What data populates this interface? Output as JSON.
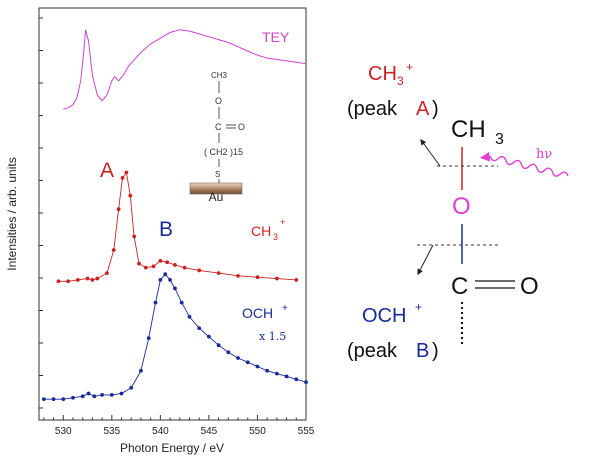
{
  "chart_data": {
    "type": "line",
    "xlabel": "Photon Energy  / eV",
    "ylabel": "Intensities / arb. units",
    "xlim": [
      527.5,
      555
    ],
    "x_ticks": [
      "530",
      "535",
      "540",
      "545",
      "550",
      "555"
    ],
    "y_tick_labels": "none",
    "grid": false,
    "series": [
      {
        "name": "TEY",
        "color": "#cc44cc",
        "marker": "none",
        "x": [
          530,
          530.5,
          531,
          531.4,
          531.8,
          532.1,
          532.3,
          532.6,
          533.0,
          533.5,
          534.0,
          534.5,
          535.0,
          535.3,
          535.7,
          536.2,
          536.7,
          537.2,
          538,
          539,
          540,
          541,
          542,
          543,
          544,
          545,
          546,
          547,
          548,
          549,
          550,
          551,
          552,
          553,
          554,
          555
        ],
        "y": [
          0.4,
          0.41,
          0.43,
          0.48,
          0.6,
          0.8,
          0.96,
          0.88,
          0.64,
          0.5,
          0.46,
          0.5,
          0.6,
          0.63,
          0.6,
          0.64,
          0.7,
          0.74,
          0.8,
          0.86,
          0.9,
          0.94,
          0.96,
          0.95,
          0.93,
          0.91,
          0.89,
          0.87,
          0.84,
          0.81,
          0.78,
          0.76,
          0.75,
          0.74,
          0.73,
          0.72
        ]
      },
      {
        "name": "CH3+",
        "color": "#cc2222",
        "marker": "dot",
        "x": [
          529.5,
          530.5,
          531.5,
          532.5,
          533.0,
          533.5,
          534.5,
          535.2,
          535.7,
          536.1,
          536.5,
          536.9,
          537.3,
          537.8,
          538.5,
          539.3,
          540.0,
          540.7,
          541.5,
          542.5,
          544,
          546,
          548,
          550,
          552,
          554
        ],
        "y": [
          0.02,
          0.02,
          0.03,
          0.04,
          0.03,
          0.04,
          0.08,
          0.25,
          0.55,
          0.78,
          0.82,
          0.65,
          0.35,
          0.15,
          0.12,
          0.13,
          0.17,
          0.16,
          0.14,
          0.12,
          0.1,
          0.08,
          0.06,
          0.05,
          0.04,
          0.03
        ]
      },
      {
        "name": "OCH+",
        "color": "#1a2a9a",
        "marker": "dot",
        "x": [
          528,
          529,
          530,
          531,
          532,
          532.6,
          533.2,
          534,
          535,
          536,
          537,
          538,
          538.8,
          539.5,
          540.0,
          540.5,
          541.0,
          541.5,
          542.2,
          543,
          544,
          545,
          546,
          547,
          548,
          549,
          550,
          551,
          552,
          553,
          554,
          555
        ],
        "y": [
          0.02,
          0.02,
          0.02,
          0.03,
          0.04,
          0.06,
          0.04,
          0.05,
          0.05,
          0.06,
          0.1,
          0.22,
          0.45,
          0.7,
          0.86,
          0.9,
          0.86,
          0.8,
          0.7,
          0.6,
          0.52,
          0.46,
          0.4,
          0.35,
          0.31,
          0.28,
          0.25,
          0.22,
          0.2,
          0.18,
          0.16,
          0.14
        ]
      }
    ],
    "annotations": {
      "peak_a_letter": "A",
      "peak_b_letter": "B",
      "tey_label": "TEY",
      "ch3_label": "CH",
      "ch3_sub": "3",
      "ch3_sup": "+",
      "och_label": "OCH",
      "och_sup": "+",
      "scale_note": "x 1.5"
    },
    "inset_molecule": {
      "ch3": "CH3",
      "o": "O",
      "c": "C",
      "eq_o": "O",
      "chain": "( CH2 )15",
      "s": "S",
      "au": "Au"
    }
  },
  "diagram": {
    "ch3_ion": "CH",
    "ch3_ion_sub": "3",
    "ch3_ion_sup": "+",
    "peak_a_text_open": "(peak ",
    "peak_a_letter": "A",
    "peak_a_text_close": ")",
    "methyl": "CH",
    "methyl_sub": "3",
    "oxygen": "O",
    "carbon": "C",
    "carbonyl_o": "O",
    "photon": "hν",
    "och_ion": "OCH",
    "och_ion_sup": "+",
    "peak_b_text_open": "(peak ",
    "peak_b_letter": "B",
    "peak_b_text_close": ")"
  },
  "colors": {
    "tey": "#cc44cc",
    "ch3": "#cc2222",
    "och": "#1a2a9a",
    "oxygen_pink": "#e040d0",
    "axis": "#333333"
  }
}
